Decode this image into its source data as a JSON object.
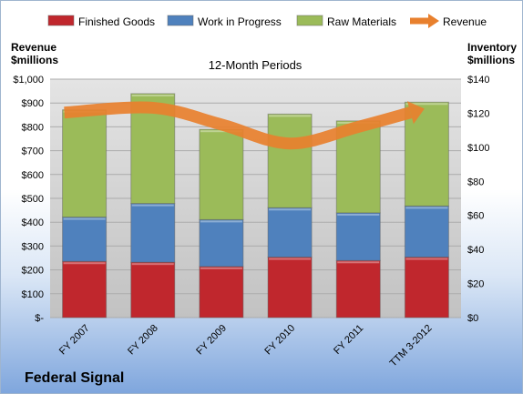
{
  "company": "Federal Signal",
  "chart_data": {
    "type": "bar",
    "stacked": true,
    "title": "12-Month Periods",
    "categories": [
      "FY 2007",
      "FY 2008",
      "FY 2009",
      "FY 2010",
      "FY 2011",
      "TTM 3-2012"
    ],
    "left_axis": {
      "label_line1": "Revenue",
      "label_line2": "$millions",
      "range": [
        0,
        1000
      ],
      "ticks": [
        "$-",
        "$100",
        "$200",
        "$300",
        "$400",
        "$500",
        "$600",
        "$700",
        "$800",
        "$900",
        "$1,000"
      ]
    },
    "right_axis": {
      "label_line1": "Inventory",
      "label_line2": "$millions",
      "range": [
        0,
        140
      ],
      "ticks": [
        "$0",
        "$20",
        "$40",
        "$60",
        "$80",
        "$100",
        "$120",
        "$140"
      ]
    },
    "series": [
      {
        "name": "Finished Goods",
        "axis": "right",
        "color": "#c0272d",
        "values": [
          33,
          32.5,
          30,
          35.5,
          33.5,
          35.5
        ]
      },
      {
        "name": "Work in Progress",
        "axis": "right",
        "color": "#4f81bd",
        "values": [
          26,
          34.5,
          27.5,
          29,
          28,
          30
        ]
      },
      {
        "name": "Raw Materials",
        "axis": "right",
        "color": "#9bbb59",
        "values": [
          63,
          64.5,
          53,
          55,
          54,
          61
        ]
      },
      {
        "name": "Revenue",
        "axis": "left",
        "type": "line",
        "color": "#e8802e",
        "values": [
          860,
          880,
          810,
          730,
          800,
          860
        ]
      }
    ],
    "legend_position": "top",
    "grid": true
  }
}
